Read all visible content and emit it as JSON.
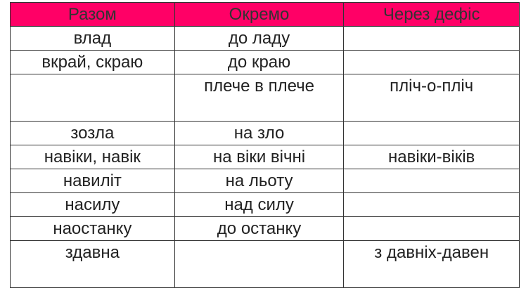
{
  "header_color": "#ff0066",
  "headers": [
    "Разом",
    "Окремо",
    "Через дефіс"
  ],
  "rows": [
    [
      "влад",
      "до ладу",
      ""
    ],
    [
      "вкрай, скраю",
      "до краю",
      ""
    ],
    [
      "",
      "плече в плече",
      "пліч-о-пліч"
    ],
    [
      "зозла",
      "на зло",
      ""
    ],
    [
      "навіки, навік",
      "на віки вічні",
      "навіки-віків"
    ],
    [
      "навиліт",
      "на льоту",
      ""
    ],
    [
      "насилу",
      "над силу",
      ""
    ],
    [
      "наостанку",
      "до останку",
      ""
    ],
    [
      "здавна",
      "",
      "з давніх-давен"
    ]
  ]
}
